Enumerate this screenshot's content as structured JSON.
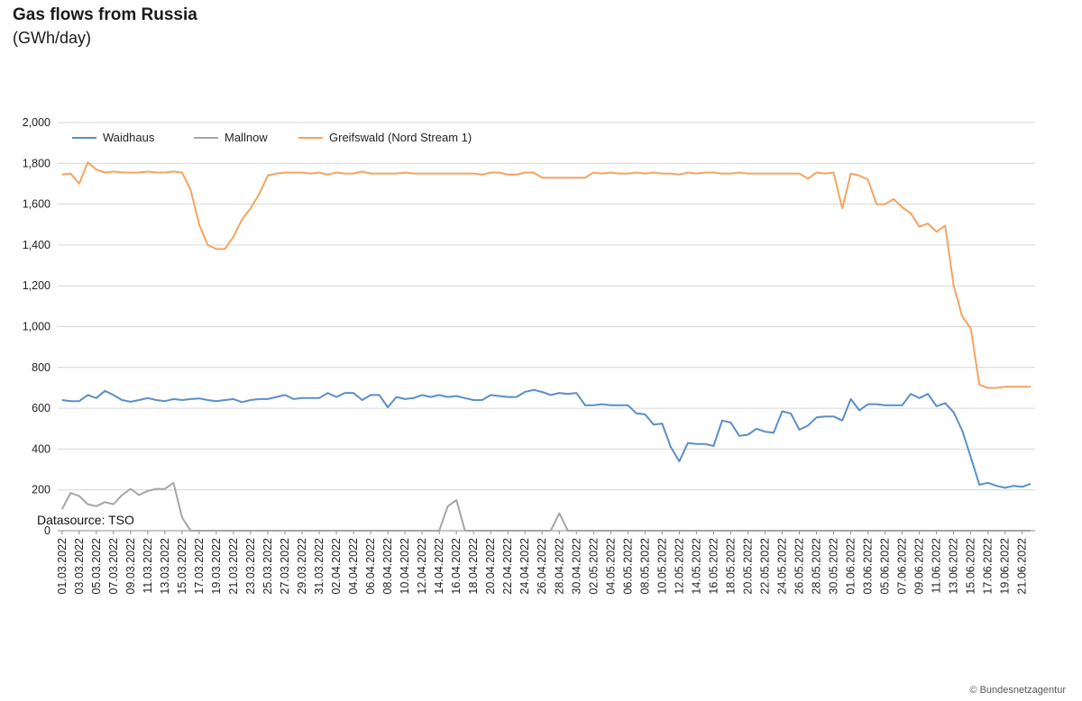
{
  "title": "Gas flows from Russia",
  "subtitle": "(GWh/day)",
  "source_note": "Datasource: TSO",
  "credit": "© Bundesnetzagentur",
  "chart_data": {
    "type": "line",
    "title": "Gas flows from Russia",
    "unit": "GWh/day",
    "ylim": [
      0,
      2000
    ],
    "yticks": [
      0,
      200,
      400,
      600,
      800,
      1000,
      1200,
      1400,
      1600,
      1800,
      2000
    ],
    "ytick_labels": [
      "0",
      "200",
      "400",
      "600",
      "800",
      "1,000",
      "1,200",
      "1,400",
      "1,600",
      "1,800",
      "2,000"
    ],
    "grid": true,
    "legend_position": "top-left",
    "x_start": "01.03.2022",
    "x_end": "22.06.2022",
    "x_tick_labels": [
      "01.03.2022",
      "03.03.2022",
      "05.03.2022",
      "07.03.2022",
      "09.03.2022",
      "11.03.2022",
      "13.03.2022",
      "15.03.2022",
      "17.03.2022",
      "19.03.2022",
      "21.03.2022",
      "23.03.2022",
      "25.03.2022",
      "27.03.2022",
      "29.03.2022",
      "31.03.2022",
      "02.04.2022",
      "04.04.2022",
      "06.04.2022",
      "08.04.2022",
      "10.04.2022",
      "12.04.2022",
      "14.04.2022",
      "16.04.2022",
      "18.04.2022",
      "20.04.2022",
      "22.04.2022",
      "24.04.2022",
      "26.04.2022",
      "28.04.2022",
      "30.04.2022",
      "02.05.2022",
      "04.05.2022",
      "06.05.2022",
      "08.05.2022",
      "10.05.2022",
      "12.05.2022",
      "14.05.2022",
      "16.05.2022",
      "18.05.2022",
      "20.05.2022",
      "22.05.2022",
      "24.05.2022",
      "26.05.2022",
      "28.05.2022",
      "30.05.2022",
      "01.06.2022",
      "03.06.2022",
      "05.06.2022",
      "07.06.2022",
      "09.06.2022",
      "11.06.2022",
      "13.06.2022",
      "15.06.2022",
      "17.06.2022",
      "19.06.2022",
      "21.06.2022"
    ],
    "series": [
      {
        "name": "Waidhaus",
        "color": "#5b8fc7",
        "values": [
          640,
          635,
          635,
          665,
          650,
          685,
          665,
          640,
          632,
          640,
          650,
          640,
          635,
          645,
          640,
          645,
          648,
          640,
          635,
          640,
          645,
          630,
          640,
          645,
          645,
          655,
          665,
          645,
          650,
          650,
          650,
          675,
          655,
          675,
          675,
          640,
          665,
          665,
          605,
          655,
          645,
          650,
          665,
          655,
          665,
          655,
          660,
          650,
          640,
          640,
          665,
          660,
          655,
          655,
          680,
          690,
          680,
          665,
          675,
          670,
          675,
          615,
          615,
          620,
          615,
          615,
          615,
          575,
          570,
          520,
          525,
          410,
          340,
          430,
          425,
          425,
          415,
          540,
          530,
          465,
          470,
          500,
          485,
          480,
          585,
          575,
          495,
          515,
          555,
          560,
          560,
          540,
          645,
          590,
          620,
          620,
          615,
          615,
          615,
          670,
          650,
          670,
          610,
          625,
          580,
          490,
          360,
          225,
          235,
          220,
          210,
          220,
          215,
          230
        ]
      },
      {
        "name": "Mallnow",
        "color": "#a6a6a6",
        "values": [
          105,
          185,
          170,
          130,
          120,
          140,
          130,
          175,
          205,
          175,
          195,
          205,
          205,
          235,
          65,
          0,
          0,
          0,
          0,
          0,
          0,
          0,
          0,
          0,
          0,
          0,
          0,
          0,
          0,
          0,
          0,
          0,
          0,
          0,
          0,
          0,
          0,
          0,
          0,
          0,
          0,
          0,
          0,
          0,
          0,
          120,
          150,
          0,
          0,
          0,
          0,
          0,
          0,
          0,
          0,
          0,
          0,
          0,
          85,
          0,
          0,
          0,
          0,
          0,
          0,
          0,
          0,
          0,
          0,
          0,
          0,
          0,
          0,
          0,
          0,
          0,
          0,
          0,
          0,
          0,
          0,
          0,
          0,
          0,
          0,
          0,
          0,
          0,
          0,
          0,
          0,
          0,
          0,
          0,
          0,
          0,
          0,
          0,
          0,
          0,
          0,
          0,
          0,
          0,
          0,
          0,
          0,
          0,
          0,
          0,
          0,
          0,
          0,
          0
        ]
      },
      {
        "name": "Greifswald (Nord Stream 1)",
        "color": "#f4a460",
        "values": [
          1745,
          1750,
          1700,
          1805,
          1770,
          1755,
          1760,
          1755,
          1755,
          1755,
          1760,
          1755,
          1755,
          1760,
          1755,
          1670,
          1500,
          1400,
          1380,
          1380,
          1440,
          1525,
          1580,
          1650,
          1740,
          1750,
          1755,
          1755,
          1755,
          1750,
          1755,
          1745,
          1755,
          1750,
          1750,
          1760,
          1750,
          1750,
          1750,
          1750,
          1755,
          1750,
          1750,
          1750,
          1750,
          1750,
          1750,
          1750,
          1750,
          1745,
          1755,
          1755,
          1745,
          1745,
          1755,
          1755,
          1730,
          1730,
          1730,
          1730,
          1730,
          1730,
          1755,
          1750,
          1755,
          1750,
          1750,
          1755,
          1750,
          1755,
          1750,
          1750,
          1745,
          1755,
          1750,
          1755,
          1755,
          1750,
          1750,
          1755,
          1750,
          1750,
          1750,
          1750,
          1750,
          1750,
          1750,
          1725,
          1755,
          1750,
          1755,
          1580,
          1750,
          1740,
          1720,
          1600,
          1600,
          1625,
          1585,
          1555,
          1490,
          1505,
          1465,
          1495,
          1200,
          1050,
          990,
          715,
          700,
          700,
          705,
          705,
          705,
          705
        ]
      }
    ]
  }
}
